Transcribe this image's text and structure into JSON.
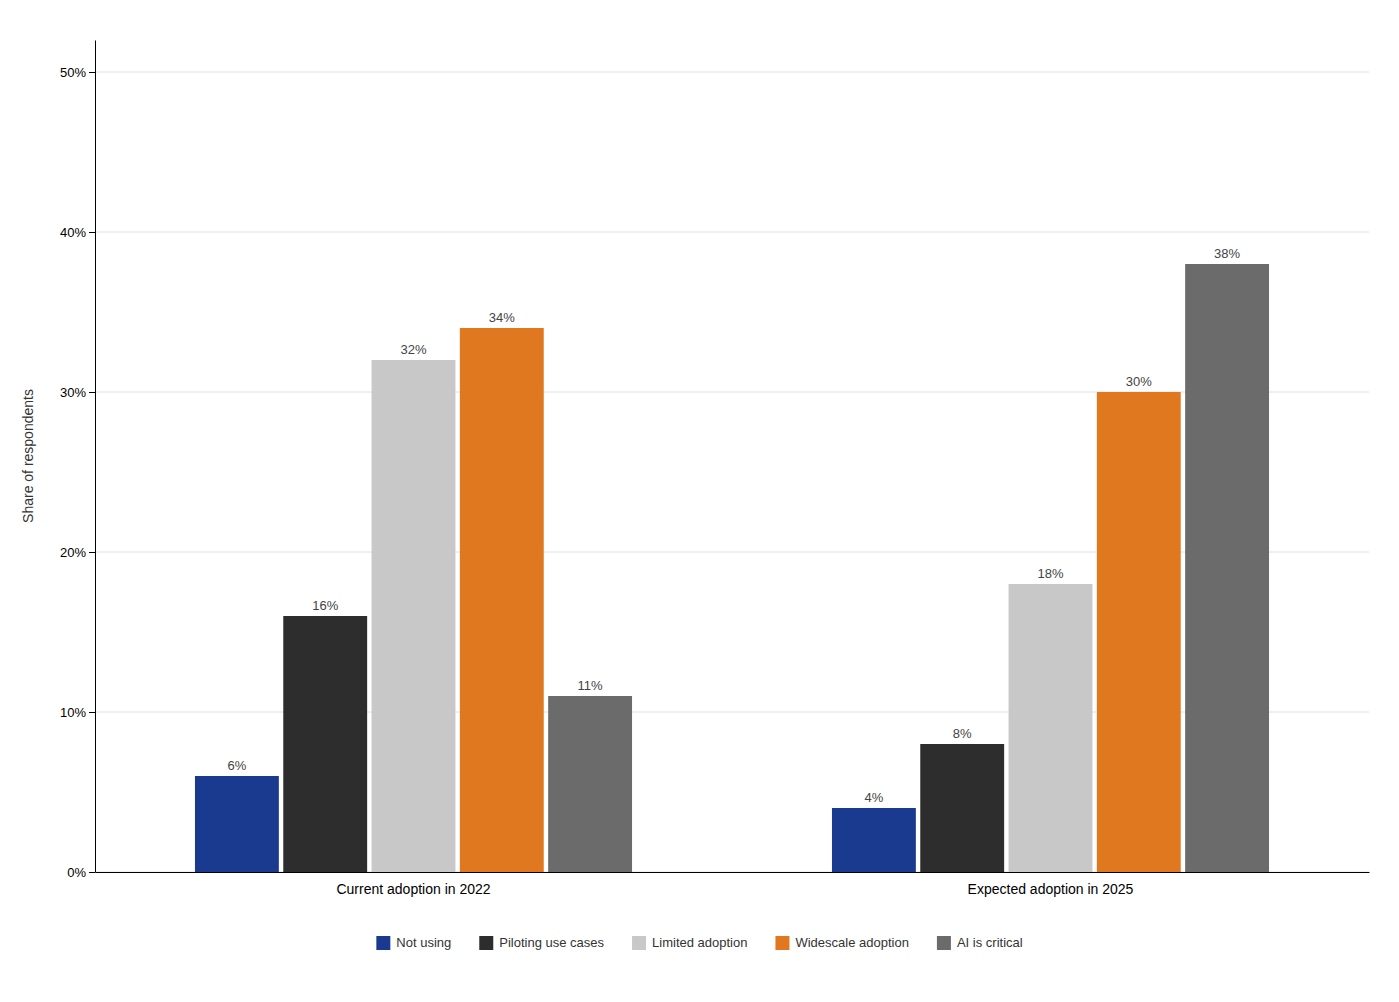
{
  "chart_data": {
    "type": "bar",
    "categories": [
      "Current adoption in 2022",
      "Expected adoption in 2025"
    ],
    "series": [
      {
        "name": "Not using",
        "color": "#1a3a8f",
        "values": [
          6,
          4
        ],
        "value_labels": [
          "6%",
          "4%"
        ]
      },
      {
        "name": "Piloting use cases",
        "color": "#2d2d2d",
        "values": [
          16,
          8
        ],
        "value_labels": [
          "16%",
          "8%"
        ]
      },
      {
        "name": "Limited adoption",
        "color": "#c8c8c8",
        "values": [
          32,
          18
        ],
        "value_labels": [
          "32%",
          "18%"
        ]
      },
      {
        "name": "Widescale adoption",
        "color": "#e07820",
        "values": [
          34,
          30
        ],
        "value_labels": [
          "34%",
          "30%"
        ]
      },
      {
        "name": "AI is critical",
        "color": "#6b6b6b",
        "values": [
          11,
          38
        ],
        "value_labels": [
          "11%",
          "38%"
        ]
      }
    ],
    "ylabel": "Share of respondents",
    "ylim": [
      0,
      52
    ],
    "yticks": [
      {
        "value": 0,
        "label": "0%"
      },
      {
        "value": 10,
        "label": "10%"
      },
      {
        "value": 20,
        "label": "20%"
      },
      {
        "value": 30,
        "label": "30%"
      },
      {
        "value": 40,
        "label": "40%"
      },
      {
        "value": 50,
        "label": "50%"
      }
    ],
    "grid": true,
    "legend": "bottom",
    "data_labels": true
  }
}
